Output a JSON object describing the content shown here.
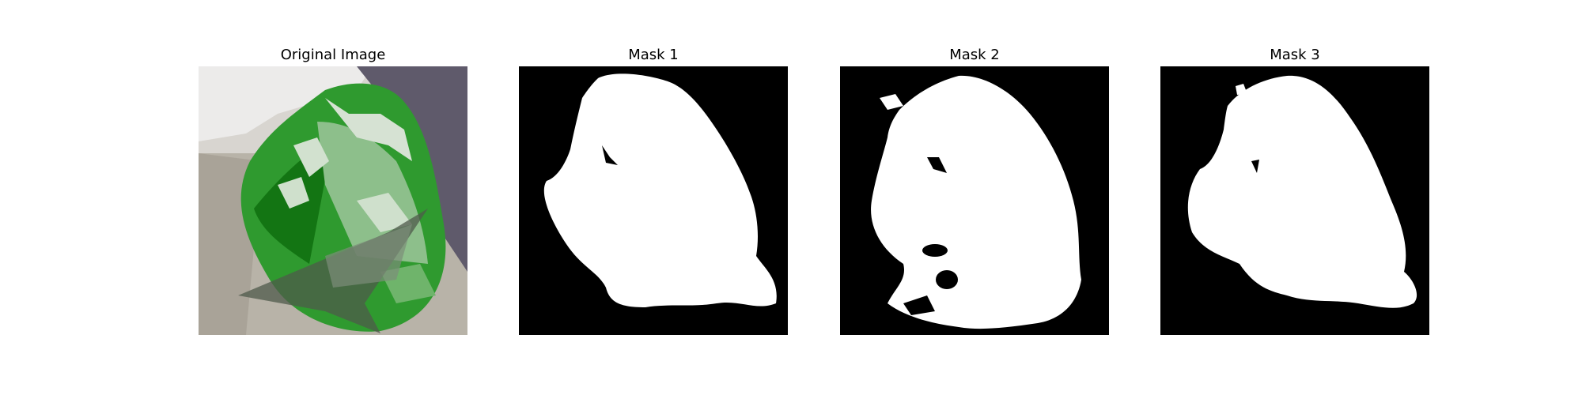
{
  "figure": {
    "panels": [
      {
        "title": "Original Image"
      },
      {
        "title": "Mask 1"
      },
      {
        "title": "Mask 2"
      },
      {
        "title": "Mask 3"
      }
    ],
    "colors": {
      "mask_background": "#000000",
      "mask_foreground": "#ffffff",
      "leaf_green": "#2f9a2f",
      "leaf_dark": "#136b13",
      "photo_background": "#b9b4aa"
    }
  }
}
